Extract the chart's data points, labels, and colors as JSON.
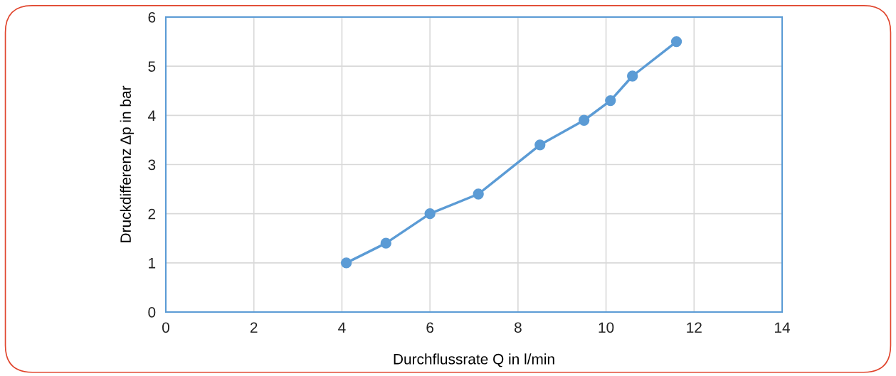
{
  "chart_data": {
    "type": "line",
    "xlabel": "Durchflussrate Q in l/min",
    "ylabel": "Druckdifferenz Δp in bar",
    "x": [
      4.1,
      5.0,
      6.0,
      7.1,
      8.5,
      9.5,
      10.1,
      10.6,
      11.6
    ],
    "series": [
      {
        "color": "#5b9bd5",
        "values": [
          1.0,
          1.4,
          2.0,
          2.4,
          3.4,
          3.9,
          4.3,
          4.8,
          5.5
        ]
      }
    ],
    "xlim": [
      0,
      14
    ],
    "xticks": [
      0,
      2,
      4,
      6,
      8,
      10,
      12,
      14
    ],
    "ylim": [
      0,
      6
    ],
    "yticks": [
      0,
      1,
      2,
      3,
      4,
      5,
      6
    ],
    "grid": true,
    "marker": "circle",
    "line_style": "solid"
  }
}
